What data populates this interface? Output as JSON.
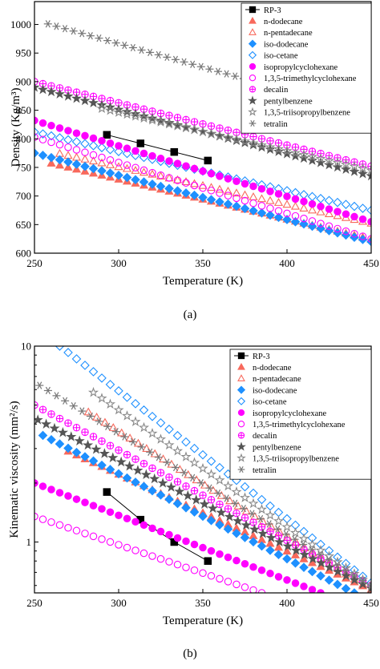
{
  "chart_data": [
    {
      "type": "scatter",
      "caption": "(a)",
      "xlabel": "Temperature (K)",
      "ylabel": "Density (Kg/m³)",
      "xlim": [
        250,
        450
      ],
      "ylim": [
        600,
        1040
      ],
      "yscale": "linear",
      "xticks": [
        250,
        300,
        350,
        400,
        450
      ],
      "yticks": [
        600,
        650,
        700,
        750,
        800,
        850,
        900,
        950,
        1000
      ],
      "legend": "top-right",
      "series": [
        {
          "name": "RP-3",
          "color": "#000000",
          "marker": "square",
          "fill": true,
          "line": true,
          "x": [
            293,
            313,
            333,
            353
          ],
          "y": [
            807,
            792,
            777,
            762
          ]
        },
        {
          "name": "n-dodecane",
          "color": "#f8695c",
          "marker": "triangle",
          "fill": true,
          "x_range": [
            260,
            450
          ],
          "y_start": 757,
          "y_end": 624
        },
        {
          "name": "n-pentadecane",
          "color": "#f8695c",
          "marker": "triangle",
          "fill": false,
          "x_range": [
            265,
            450
          ],
          "y_start": 774,
          "y_end": 652
        },
        {
          "name": "iso-dodecane",
          "color": "#1e90ff",
          "marker": "diamond",
          "fill": true,
          "x_range": [
            250,
            450
          ],
          "y_start": 775,
          "y_end": 620
        },
        {
          "name": "iso-cetane",
          "color": "#1e90ff",
          "marker": "diamond",
          "fill": false,
          "x_range": [
            250,
            450
          ],
          "y_start": 812,
          "y_end": 675
        },
        {
          "name": "isopropylcyclohexane",
          "color": "#ff00ff",
          "marker": "circle",
          "fill": true,
          "x_range": [
            250,
            450
          ],
          "y_start": 832,
          "y_end": 655
        },
        {
          "name": "1,3,5-trimethylcyclohexane",
          "color": "#ff00ff",
          "marker": "circle",
          "fill": false,
          "x_range": [
            250,
            450
          ],
          "y_start": 803,
          "y_end": 625
        },
        {
          "name": "decalin",
          "color": "#ff00ff",
          "marker": "circle-cross",
          "fill": false,
          "x_range": [
            250,
            450
          ],
          "y_start": 900,
          "y_end": 752
        },
        {
          "name": "pentylbenzene",
          "color": "#555555",
          "marker": "star",
          "fill": true,
          "x_range": [
            250,
            450
          ],
          "y_start": 890,
          "y_end": 735
        },
        {
          "name": "1,3,5-triisopropylbenzene",
          "color": "#888888",
          "marker": "star",
          "fill": false,
          "x_range": [
            290,
            450
          ],
          "y_start": 853,
          "y_end": 745
        },
        {
          "name": "tetralin",
          "color": "#777777",
          "marker": "asterisk",
          "fill": false,
          "x_range": [
            258,
            450
          ],
          "y_start": 1001,
          "y_end": 843
        }
      ]
    },
    {
      "type": "scatter",
      "caption": "(b)",
      "xlabel": "Temperature (K)",
      "ylabel": "Kinematic viscosity (mm²/s)",
      "xlim": [
        250,
        450
      ],
      "ylim": [
        0.55,
        10
      ],
      "yscale": "log",
      "xticks": [
        250,
        300,
        350,
        400,
        450
      ],
      "yticks": [
        1,
        10
      ],
      "legend": "top-right",
      "series": [
        {
          "name": "RP-3",
          "color": "#000000",
          "marker": "square",
          "fill": true,
          "line": true,
          "x": [
            293,
            313,
            333,
            353
          ],
          "y": [
            1.8,
            1.3,
            1.0,
            0.8
          ]
        },
        {
          "name": "n-dodecane",
          "color": "#f8695c",
          "marker": "triangle",
          "fill": true,
          "x_range": [
            270,
            450
          ],
          "y_start": 2.9,
          "y_end": 0.57
        },
        {
          "name": "n-pentadecane",
          "color": "#f8695c",
          "marker": "triangle",
          "fill": false,
          "x_range": [
            282,
            450
          ],
          "y_start": 4.6,
          "y_end": 0.57
        },
        {
          "name": "iso-dodecane",
          "color": "#1e90ff",
          "marker": "diamond",
          "fill": true,
          "x_range": [
            255,
            440
          ],
          "y_start": 3.5,
          "y_end": 0.55
        },
        {
          "name": "iso-cetane",
          "color": "#1e90ff",
          "marker": "diamond",
          "fill": false,
          "x_range": [
            265,
            450
          ],
          "y_start": 10,
          "y_end": 0.62
        },
        {
          "name": "isopropylcyclohexane",
          "color": "#ff00ff",
          "marker": "circle",
          "fill": true,
          "x_range": [
            250,
            420
          ],
          "y_start": 2.0,
          "y_end": 0.55
        },
        {
          "name": "1,3,5-trimethylcyclohexane",
          "color": "#ff00ff",
          "marker": "circle",
          "fill": false,
          "x_range": [
            250,
            385
          ],
          "y_start": 1.35,
          "y_end": 0.55
        },
        {
          "name": "decalin",
          "color": "#ff00ff",
          "marker": "circle-cross",
          "fill": false,
          "x_range": [
            250,
            450
          ],
          "y_start": 5.0,
          "y_end": 0.6
        },
        {
          "name": "pentylbenzene",
          "color": "#555555",
          "marker": "star",
          "fill": true,
          "x_range": [
            252,
            450
          ],
          "y_start": 4.2,
          "y_end": 0.58
        },
        {
          "name": "1,3,5-triisopropylbenzene",
          "color": "#888888",
          "marker": "star",
          "fill": false,
          "x_range": [
            285,
            450
          ],
          "y_start": 5.8,
          "y_end": 0.6
        },
        {
          "name": "tetralin",
          "color": "#777777",
          "marker": "asterisk",
          "fill": false,
          "x_range": [
            253,
            450
          ],
          "y_start": 6.3,
          "y_end": 0.6
        }
      ]
    }
  ]
}
